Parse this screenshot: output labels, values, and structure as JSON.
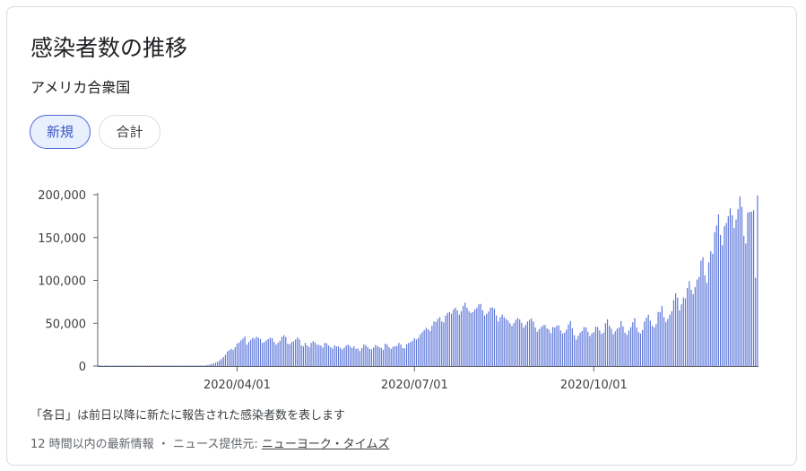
{
  "header": {
    "title": "感染者数の推移",
    "region": "アメリカ合衆国"
  },
  "tabs": [
    {
      "label": "新規",
      "selected": true
    },
    {
      "label": "合計",
      "selected": false
    }
  ],
  "footer": {
    "note": "「各日」は前日以降に新たに報告された感染者数を表します",
    "freshness": "12 時間以内の最新情報",
    "separator": "・",
    "source_prefix": "ニュース提供元:",
    "source_name": "ニューヨーク・タイムズ"
  },
  "colors": {
    "bar": "#5c76d9",
    "accent": "#3b56c2",
    "axis": "#5f6368"
  },
  "chart_data": {
    "type": "bar",
    "title": "",
    "xlabel": "",
    "ylabel": "",
    "ylim": [
      0,
      200000
    ],
    "y_ticks": [
      {
        "value": 0,
        "label": "0"
      },
      {
        "value": 50000,
        "label": "50,000"
      },
      {
        "value": 100000,
        "label": "100,000"
      },
      {
        "value": 150000,
        "label": "150,000"
      },
      {
        "value": 200000,
        "label": "200,000"
      }
    ],
    "x_ticks": [
      {
        "date": "2020-04-01",
        "label": "2020/04/01"
      },
      {
        "date": "2020-07-01",
        "label": "2020/07/01"
      },
      {
        "date": "2020-10-01",
        "label": "2020/10/01"
      }
    ],
    "start_date": "2020-01-21",
    "values": [
      1,
      0,
      0,
      0,
      0,
      0,
      0,
      0,
      0,
      0,
      1,
      0,
      1,
      0,
      1,
      0,
      1,
      0,
      0,
      1,
      0,
      0,
      0,
      0,
      0,
      1,
      0,
      1,
      0,
      0,
      1,
      0,
      0,
      0,
      0,
      1,
      0,
      0,
      0,
      1,
      2,
      6,
      10,
      14,
      18,
      30,
      48,
      60,
      120,
      180,
      250,
      300,
      400,
      550,
      700,
      900,
      1200,
      1800,
      2400,
      3000,
      4000,
      5000,
      6500,
      8500,
      10500,
      13000,
      17000,
      18500,
      20000,
      19000,
      22000,
      26000,
      27500,
      30000,
      32000,
      34500,
      25000,
      28000,
      30500,
      33000,
      32000,
      34000,
      33000,
      31500,
      27000,
      28000,
      30000,
      31500,
      33000,
      32500,
      28000,
      25000,
      27000,
      29500,
      34000,
      36000,
      34000,
      26000,
      25500,
      28000,
      29000,
      31000,
      33500,
      31000,
      24000,
      23000,
      27000,
      24000,
      22000,
      27000,
      29000,
      27500,
      25000,
      24500,
      24000,
      21500,
      27000,
      26500,
      24000,
      22000,
      20500,
      24000,
      23000,
      23000,
      21000,
      19500,
      21500,
      24000,
      25000,
      23000,
      21000,
      23000,
      20000,
      20500,
      17500,
      21000,
      25000,
      24500,
      22000,
      20000,
      19500,
      21500,
      24500,
      23500,
      22000,
      21000,
      19000,
      26000,
      25000,
      22000,
      20000,
      22500,
      23000,
      23500,
      27000,
      25000,
      21000,
      20500,
      25500,
      27000,
      28000,
      29500,
      32500,
      31000,
      33000,
      37000,
      39500,
      42000,
      44500,
      43000,
      41000,
      47000,
      52000,
      51500,
      55000,
      57000,
      52000,
      51000,
      59000,
      62000,
      63000,
      61000,
      66000,
      68000,
      65000,
      60000,
      64000,
      70000,
      74000,
      68000,
      64000,
      62000,
      63000,
      66000,
      68000,
      72000,
      72500,
      65000,
      59000,
      61000,
      63500,
      68000,
      68500,
      67000,
      59000,
      52000,
      57000,
      60000,
      57000,
      55000,
      53000,
      50000,
      47000,
      50000,
      54000,
      56000,
      54500,
      50500,
      45000,
      48000,
      52000,
      54000,
      55500,
      52000,
      45000,
      40000,
      43000,
      45500,
      47500,
      48000,
      44000,
      42500,
      38500,
      45500,
      45000,
      47000,
      47500,
      41500,
      38000,
      39000,
      42500,
      48500,
      52500,
      44000,
      36000,
      31000,
      35500,
      39000,
      41000,
      45500,
      45000,
      40000,
      35000,
      38000,
      39500,
      46000,
      45500,
      41500,
      37500,
      39000,
      50000,
      54500,
      47000,
      43500,
      37000,
      40500,
      43500,
      45000,
      52500,
      46000,
      39000,
      36500,
      41500,
      45500,
      51000,
      56000,
      45000,
      39500,
      38000,
      42000,
      52000,
      56500,
      60000,
      53000,
      47000,
      45000,
      49000,
      63000,
      63000,
      70000,
      57000,
      51500,
      55000,
      60000,
      64000,
      77000,
      85000,
      80000,
      65000,
      72000,
      80000,
      79000,
      91000,
      99000,
      89000,
      84000,
      92000,
      101000,
      104000,
      123000,
      127000,
      106000,
      97000,
      121000,
      134000,
      131000,
      156000,
      164000,
      177000,
      153000,
      141000,
      163000,
      167000,
      175000,
      184000,
      176000,
      161000,
      171000,
      183000,
      198000,
      186000,
      152000,
      143000,
      179000,
      180000,
      180000,
      182000,
      103000,
      199000
    ]
  }
}
